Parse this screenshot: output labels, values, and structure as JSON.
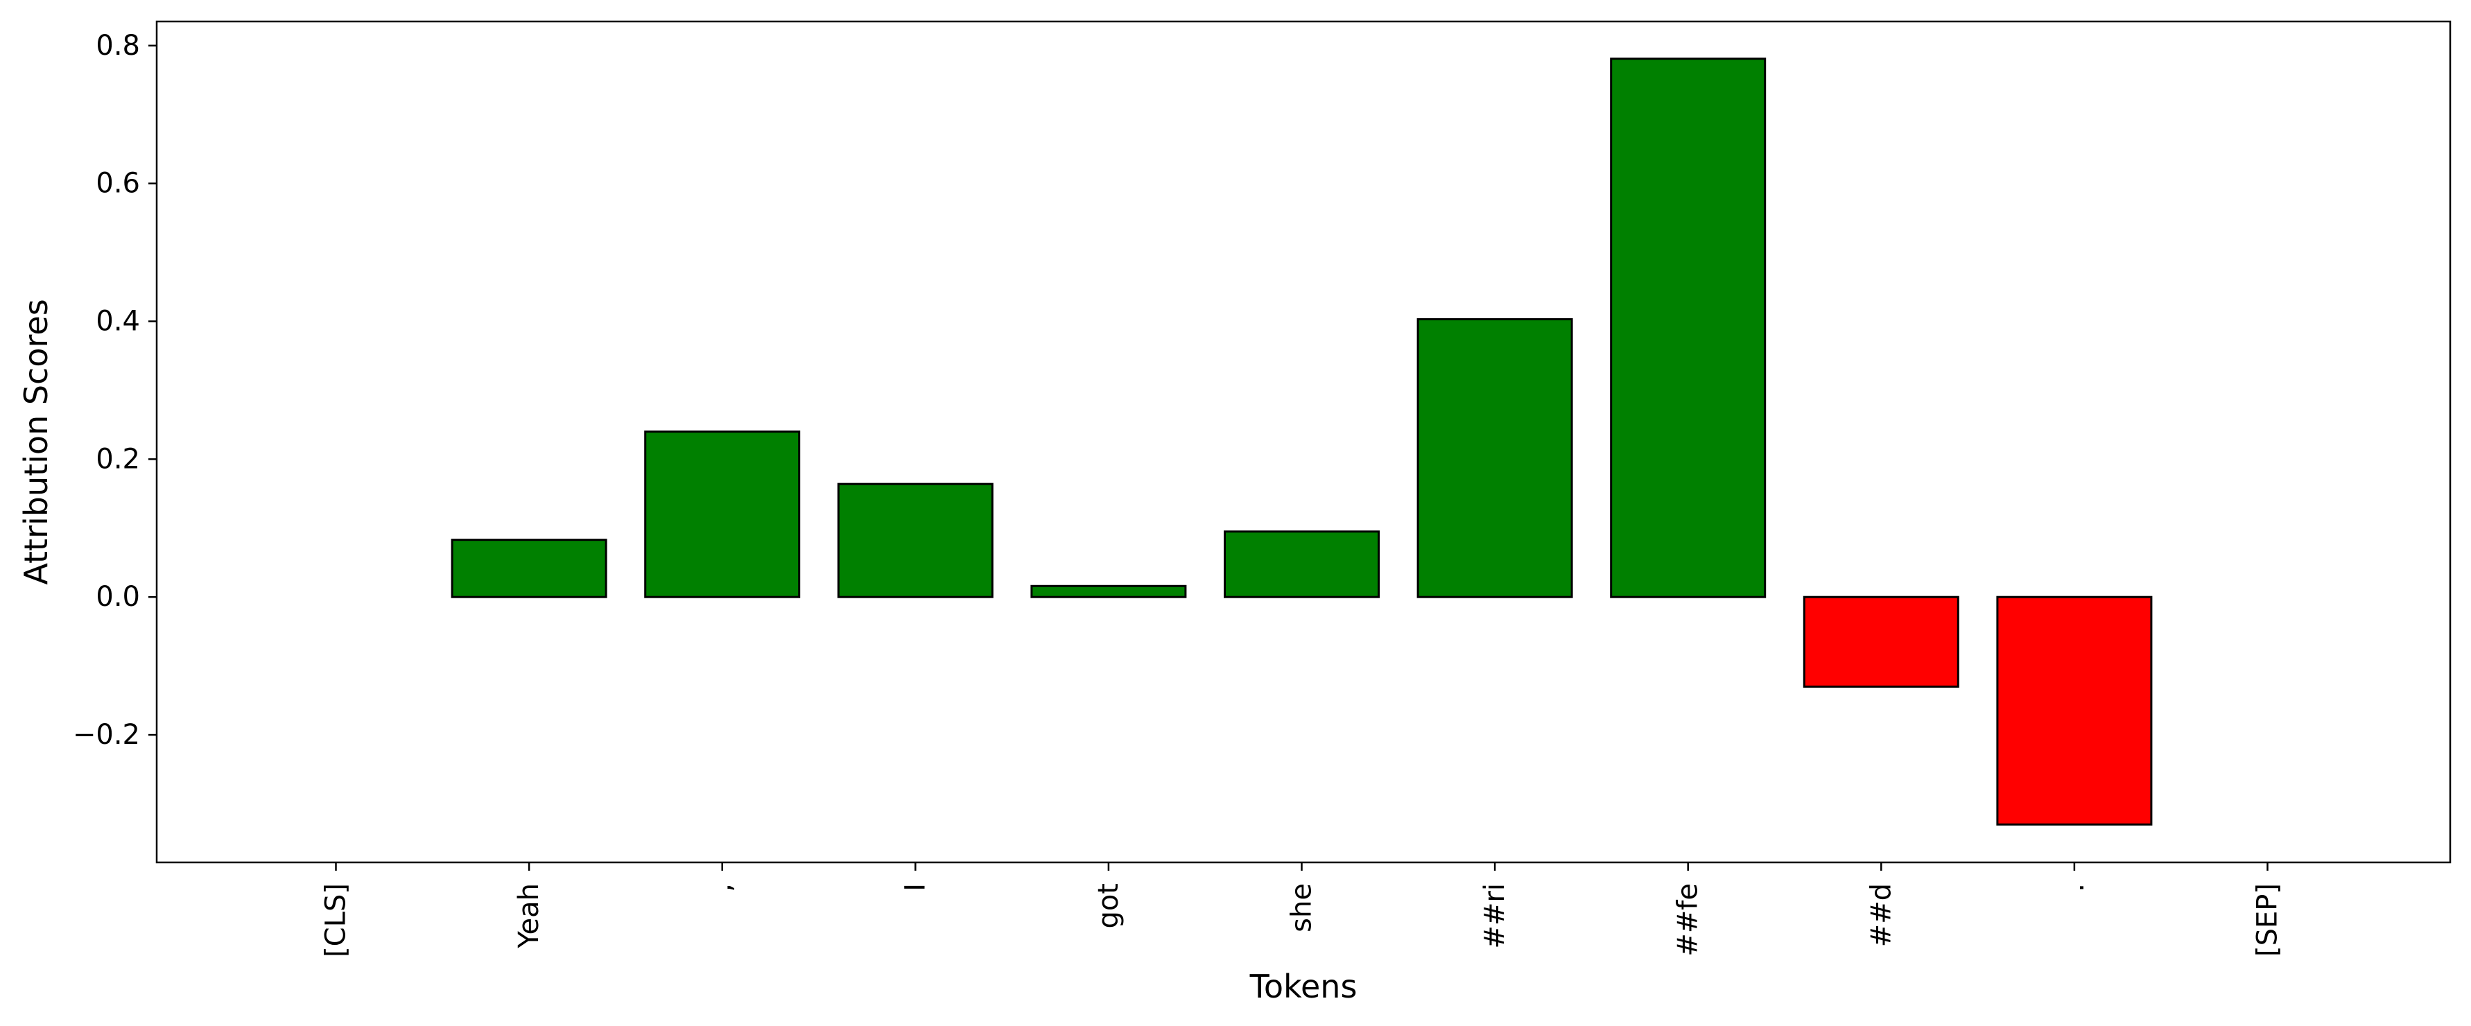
{
  "chart_data": {
    "type": "bar",
    "title": "",
    "xlabel": "Tokens",
    "ylabel": "Attribution Scores",
    "categories": [
      "[CLS]",
      "Yeah",
      ",",
      "I",
      "got",
      "she",
      "##ri",
      "##fe",
      "##d",
      ".",
      "[SEP]"
    ],
    "values": [
      0.0,
      0.083,
      0.24,
      0.164,
      0.016,
      0.095,
      0.403,
      0.781,
      -0.13,
      -0.33,
      0.0
    ],
    "ylim": [
      -0.385,
      0.835
    ],
    "yticks": [
      -0.2,
      0.0,
      0.2,
      0.4,
      0.6,
      0.8
    ],
    "ytick_labels": [
      "−0.2",
      "0.0",
      "0.2",
      "0.4",
      "0.6",
      "0.8"
    ],
    "grid": false,
    "legend": "none",
    "colors": {
      "positive": "#008000",
      "negative": "#ff0000",
      "edge": "#000000"
    }
  }
}
